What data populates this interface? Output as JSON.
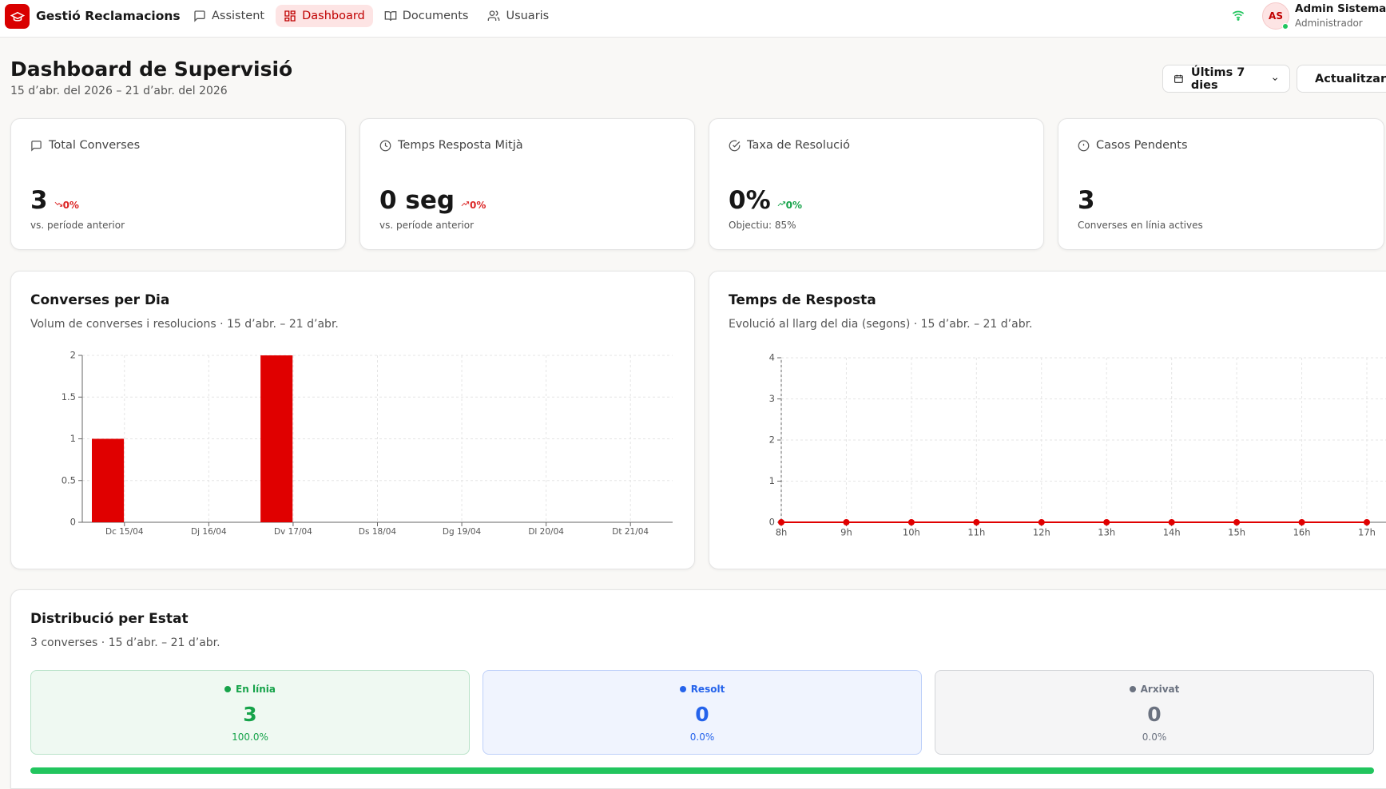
{
  "header": {
    "brand": "Gestió Reclamacions",
    "nav": [
      {
        "label": "Assistent",
        "active": false
      },
      {
        "label": "Dashboard",
        "active": true
      },
      {
        "label": "Documents",
        "active": false
      },
      {
        "label": "Usuaris",
        "active": false
      }
    ],
    "user": {
      "initials": "AS",
      "name": "Admin Sistema",
      "role": "Administrador"
    }
  },
  "page": {
    "title": "Dashboard de Supervisió",
    "date_range": "15 d’abr. del 2026 – 21 d’abr. del 2026",
    "period_button": "Últims 7 dies",
    "refresh_button": "Actualitzar"
  },
  "kpis": [
    {
      "label": "Total Converses",
      "value": "3",
      "change": "0%",
      "trend": "down",
      "change_color": "#dc2626",
      "note": "vs. període anterior"
    },
    {
      "label": "Temps Resposta Mitjà",
      "value": "0 seg",
      "change": "0%",
      "trend": "up",
      "change_color": "#dc2626",
      "note": "vs. període anterior"
    },
    {
      "label": "Taxa de Resolució",
      "value": "0%",
      "change": "0%",
      "trend": "up",
      "change_color": "#16a34a",
      "note": "Objectiu: 85%"
    },
    {
      "label": "Casos Pendents",
      "value": "3",
      "note": "Converses en línia actives"
    }
  ],
  "charts": [
    {
      "type": "bar",
      "title": "Converses per Dia",
      "subtitle": "Volum de converses i resolucions · 15 d’abr. – 21 d’abr.",
      "categories": [
        "Dc 15/04",
        "Dj 16/04",
        "Dv 17/04",
        "Ds 18/04",
        "Dg 19/04",
        "Dl 20/04",
        "Dt 21/04"
      ],
      "values": [
        1,
        0,
        2,
        0,
        0,
        0,
        0
      ],
      "color": "#e00000",
      "ylim": [
        0,
        2
      ],
      "yticks": [
        0,
        0.5,
        1,
        1.5,
        2
      ],
      "grid": true
    },
    {
      "type": "line",
      "title": "Temps de Resposta",
      "subtitle": "Evolució al llarg del dia (segons) · 15 d’abr. – 21 d’abr.",
      "categories": [
        "8h",
        "9h",
        "10h",
        "11h",
        "12h",
        "13h",
        "14h",
        "15h",
        "16h",
        "17h"
      ],
      "values": [
        0,
        0,
        0,
        0,
        0,
        0,
        0,
        0,
        0,
        0
      ],
      "color": "#e00000",
      "ylim": [
        0,
        4
      ],
      "yticks": [
        0,
        1,
        2,
        3,
        4
      ],
      "grid": true
    }
  ],
  "distribution": {
    "title": "Distribució per Estat",
    "subtitle": "3 converses · 15 d’abr. – 21 d’abr.",
    "states": [
      {
        "name": "En línia",
        "count": 3,
        "percent": "100.0%",
        "color": "#16a34a"
      },
      {
        "name": "Resolt",
        "count": 0,
        "percent": "0.0%",
        "color": "#2563eb"
      },
      {
        "name": "Arxivat",
        "count": 0,
        "percent": "0.0%",
        "color": "#6b7280"
      }
    ]
  }
}
